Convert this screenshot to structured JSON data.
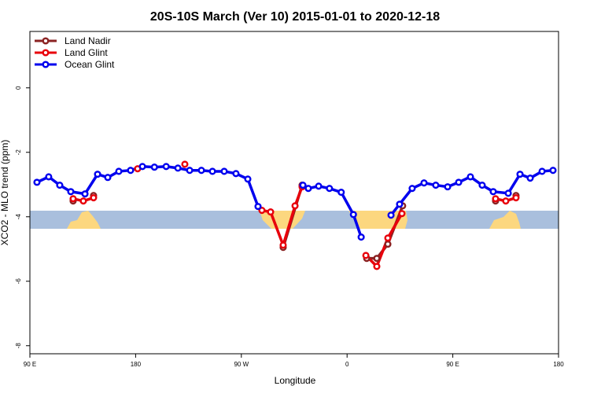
{
  "chart_data": {
    "type": "line",
    "title": "20S-10S March (Ver 10)   2015-01-01 to 2020-12-18",
    "x_label": "Longitude",
    "y_label": "XCO2 - MLO trend (ppm)",
    "xlim": [
      90,
      540
    ],
    "xticks": [
      {
        "value": 90,
        "label": "90 E"
      },
      180,
      {
        "value": 270,
        "label": "90 W"
      },
      {
        "value": 360,
        "label": "0"
      },
      {
        "value": 450,
        "label": "90 E"
      },
      {
        "value": 540,
        "label": "180"
      }
    ],
    "ylim": [
      -8.25,
      1.75
    ],
    "yticks": [
      0,
      -2,
      -4,
      -6,
      -8
    ],
    "legend": "top-left",
    "series": [
      {
        "name": "Land Nadir",
        "color": "#8b2323",
        "x": [
          126.8,
          null,
          144.2,
          null,
          305.6,
          321.7,
          null,
          376.7,
          385.3,
          394.7,
          407.3,
          null,
          486.4,
          null,
          503.8
        ],
        "values": [
          -3.51,
          null,
          -3.34,
          null,
          -4.95,
          -3.02,
          null,
          -5.29,
          -5.29,
          -4.85,
          -3.66,
          null,
          -3.51,
          null,
          -3.34
        ]
      },
      {
        "name": "Land Glint",
        "color": "#e8000b",
        "x": [
          126.8,
          135.5,
          144.2,
          null,
          181.7,
          null,
          221.9,
          null,
          287.5,
          294.9,
          305.6,
          315.7,
          321.7,
          null,
          376,
          385.3,
          394.7,
          406.7,
          null,
          486.4,
          495.1,
          503.8
        ],
        "values": [
          -3.44,
          -3.51,
          -3.41,
          null,
          -2.51,
          null,
          -2.37,
          null,
          -3.8,
          -3.85,
          -4.88,
          -3.66,
          -3.07,
          null,
          -5.2,
          -5.54,
          -4.66,
          -3.9,
          null,
          -3.44,
          -3.51,
          -3.41
        ]
      },
      {
        "name": "Ocean Glint",
        "color": "#0000ee",
        "x": [
          96,
          106,
          115.4,
          124.8,
          136.9,
          147.6,
          156.3,
          165.7,
          175.7,
          185.8,
          196,
          206,
          216,
          226,
          236,
          245.4,
          255.4,
          265.4,
          275.5,
          284.2,
          null,
          322.4,
          327,
          335.8,
          345,
          355,
          365.4,
          372,
          null,
          397.4,
          404.7,
          415.4,
          425.5,
          435.5,
          445.6,
          455,
          465,
          475,
          484.4,
          497.2,
          507.2,
          515.9,
          526,
          535.3
        ],
        "values": [
          -2.93,
          -2.76,
          -3.02,
          -3.22,
          -3.29,
          -2.68,
          -2.78,
          -2.59,
          -2.56,
          -2.44,
          -2.46,
          -2.44,
          -2.49,
          -2.56,
          -2.56,
          -2.59,
          -2.59,
          -2.66,
          -2.83,
          -3.68,
          null,
          -3.02,
          -3.12,
          -3.05,
          -3.12,
          -3.24,
          -3.93,
          -4.63,
          null,
          -3.95,
          -3.61,
          -3.12,
          -2.95,
          -3.02,
          -3.07,
          -2.93,
          -2.76,
          -3.02,
          -3.22,
          -3.27,
          -2.68,
          -2.8,
          -2.59,
          -2.56
        ]
      }
    ]
  }
}
